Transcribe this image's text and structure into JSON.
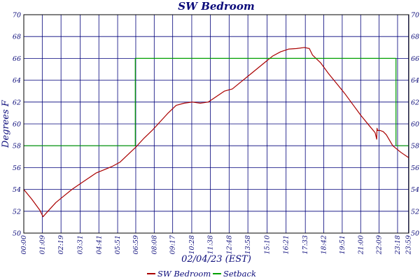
{
  "chart_data": {
    "type": "line",
    "title": "SW Bedroom",
    "xlabel": "02/04/23 (EST)",
    "ylabel": "Degrees F",
    "ylim": [
      50,
      70
    ],
    "yticks": [
      50,
      52,
      54,
      56,
      58,
      60,
      62,
      64,
      66,
      68,
      70
    ],
    "xlim": [
      0,
      24
    ],
    "x_tick_labels": [
      "00:00",
      "01:09",
      "02:19",
      "03:31",
      "04:41",
      "05:51",
      "06:59",
      "08:08",
      "09:17",
      "10:28",
      "11:38",
      "12:48",
      "13:58",
      "15:10",
      "16:21",
      "17:33",
      "18:42",
      "19:51",
      "21:00",
      "22:09",
      "23:18",
      "23:59"
    ],
    "x_tick_hours": [
      0,
      1.15,
      2.32,
      3.52,
      4.68,
      5.85,
      6.98,
      8.13,
      9.28,
      10.47,
      11.63,
      12.8,
      13.97,
      15.17,
      16.35,
      17.55,
      18.7,
      19.85,
      21.0,
      22.15,
      23.3,
      23.98
    ],
    "grid": true,
    "legend_position": "bottom-center",
    "series": [
      {
        "name": "SW Bedroom",
        "color": "#aa0000",
        "x": [
          0,
          0.5,
          1.0,
          1.2,
          1.5,
          2.0,
          2.5,
          3.0,
          3.5,
          4.0,
          4.5,
          5.0,
          5.5,
          6.0,
          6.5,
          7.0,
          7.5,
          8.0,
          8.5,
          9.0,
          9.5,
          10.0,
          10.5,
          11.0,
          11.5,
          12.0,
          12.5,
          13.0,
          13.5,
          14.0,
          14.5,
          15.0,
          15.5,
          16.0,
          16.5,
          17.0,
          17.5,
          17.8,
          18.0,
          18.5,
          19.0,
          19.5,
          20.0,
          20.5,
          21.0,
          21.5,
          21.9,
          22.0,
          22.02,
          22.05,
          22.2,
          22.4,
          22.6,
          23.0,
          23.5,
          24.0
        ],
        "y": [
          54.0,
          53.1,
          52.1,
          51.5,
          52.0,
          52.8,
          53.4,
          54.0,
          54.5,
          55.0,
          55.5,
          55.8,
          56.1,
          56.5,
          57.2,
          57.9,
          58.7,
          59.4,
          60.2,
          61.0,
          61.7,
          61.9,
          62.0,
          61.9,
          62.0,
          62.5,
          63.0,
          63.2,
          63.8,
          64.4,
          65.0,
          65.6,
          66.2,
          66.6,
          66.85,
          66.9,
          67.0,
          66.9,
          66.3,
          65.6,
          64.6,
          63.7,
          62.8,
          61.8,
          60.8,
          59.9,
          59.2,
          58.6,
          59.6,
          59.4,
          59.4,
          59.3,
          59.0,
          58.0,
          57.4,
          56.9
        ]
      },
      {
        "name": "Setback",
        "color": "#00a000",
        "x": [
          0,
          6.95,
          6.95,
          23.2,
          23.2,
          24.0
        ],
        "y": [
          58,
          58,
          66,
          66,
          58,
          58
        ]
      }
    ]
  }
}
